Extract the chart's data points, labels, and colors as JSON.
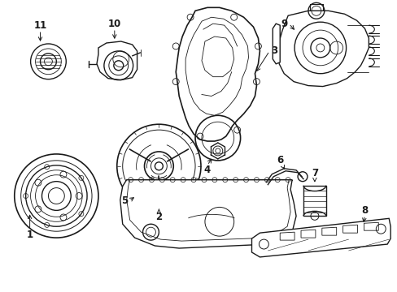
{
  "background_color": "#ffffff",
  "line_color": "#1a1a1a",
  "figsize": [
    4.89,
    3.6
  ],
  "dpi": 100,
  "label_fontsize": 8.5
}
